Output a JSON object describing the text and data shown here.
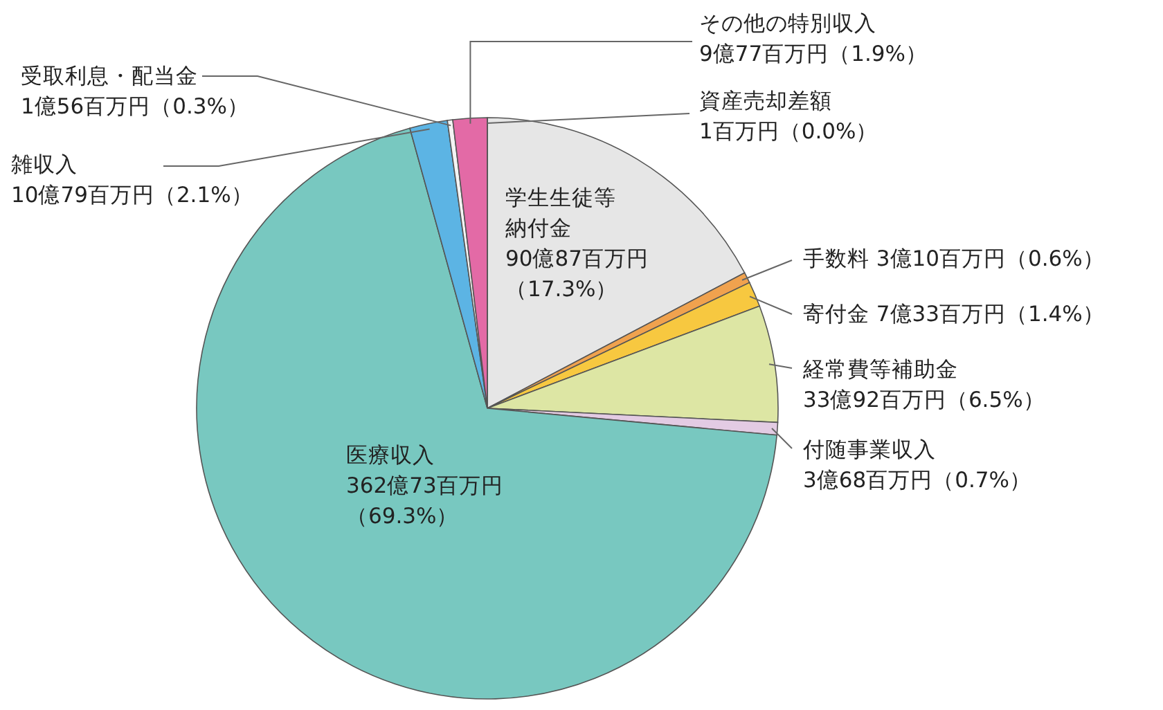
{
  "chart_data": {
    "type": "pie",
    "categories": [
      "学生生徒等納付金",
      "手数料",
      "寄付金",
      "経常費等補助金",
      "付随事業収入",
      "医療収入",
      "雑収入",
      "受取利息・配当金",
      "その他の特別収入",
      "資産売却差額"
    ],
    "values": [
      17.3,
      0.6,
      1.4,
      6.5,
      0.7,
      69.3,
      2.1,
      0.3,
      1.9,
      0.0
    ],
    "value_labels": [
      "90億87百万円（17.3%）",
      "3億10百万円（0.6%）",
      "7億33百万円（1.4%）",
      "33億92百万円（6.5%）",
      "3億68百万円（0.7%）",
      "362億73百万円（69.3%）",
      "10億79百万円（2.1%）",
      "1億56百万円（0.3%）",
      "9億77百万円（1.9%）",
      "1百万円（0.0%）"
    ],
    "colors": [
      "#e6e6e6",
      "#f0a24e",
      "#f7c840",
      "#dde6a4",
      "#e3cbe3",
      "#78c8c0",
      "#5cb4e4",
      "#f4f4f4",
      "#e36aa6",
      "#ffffff"
    ]
  }
}
